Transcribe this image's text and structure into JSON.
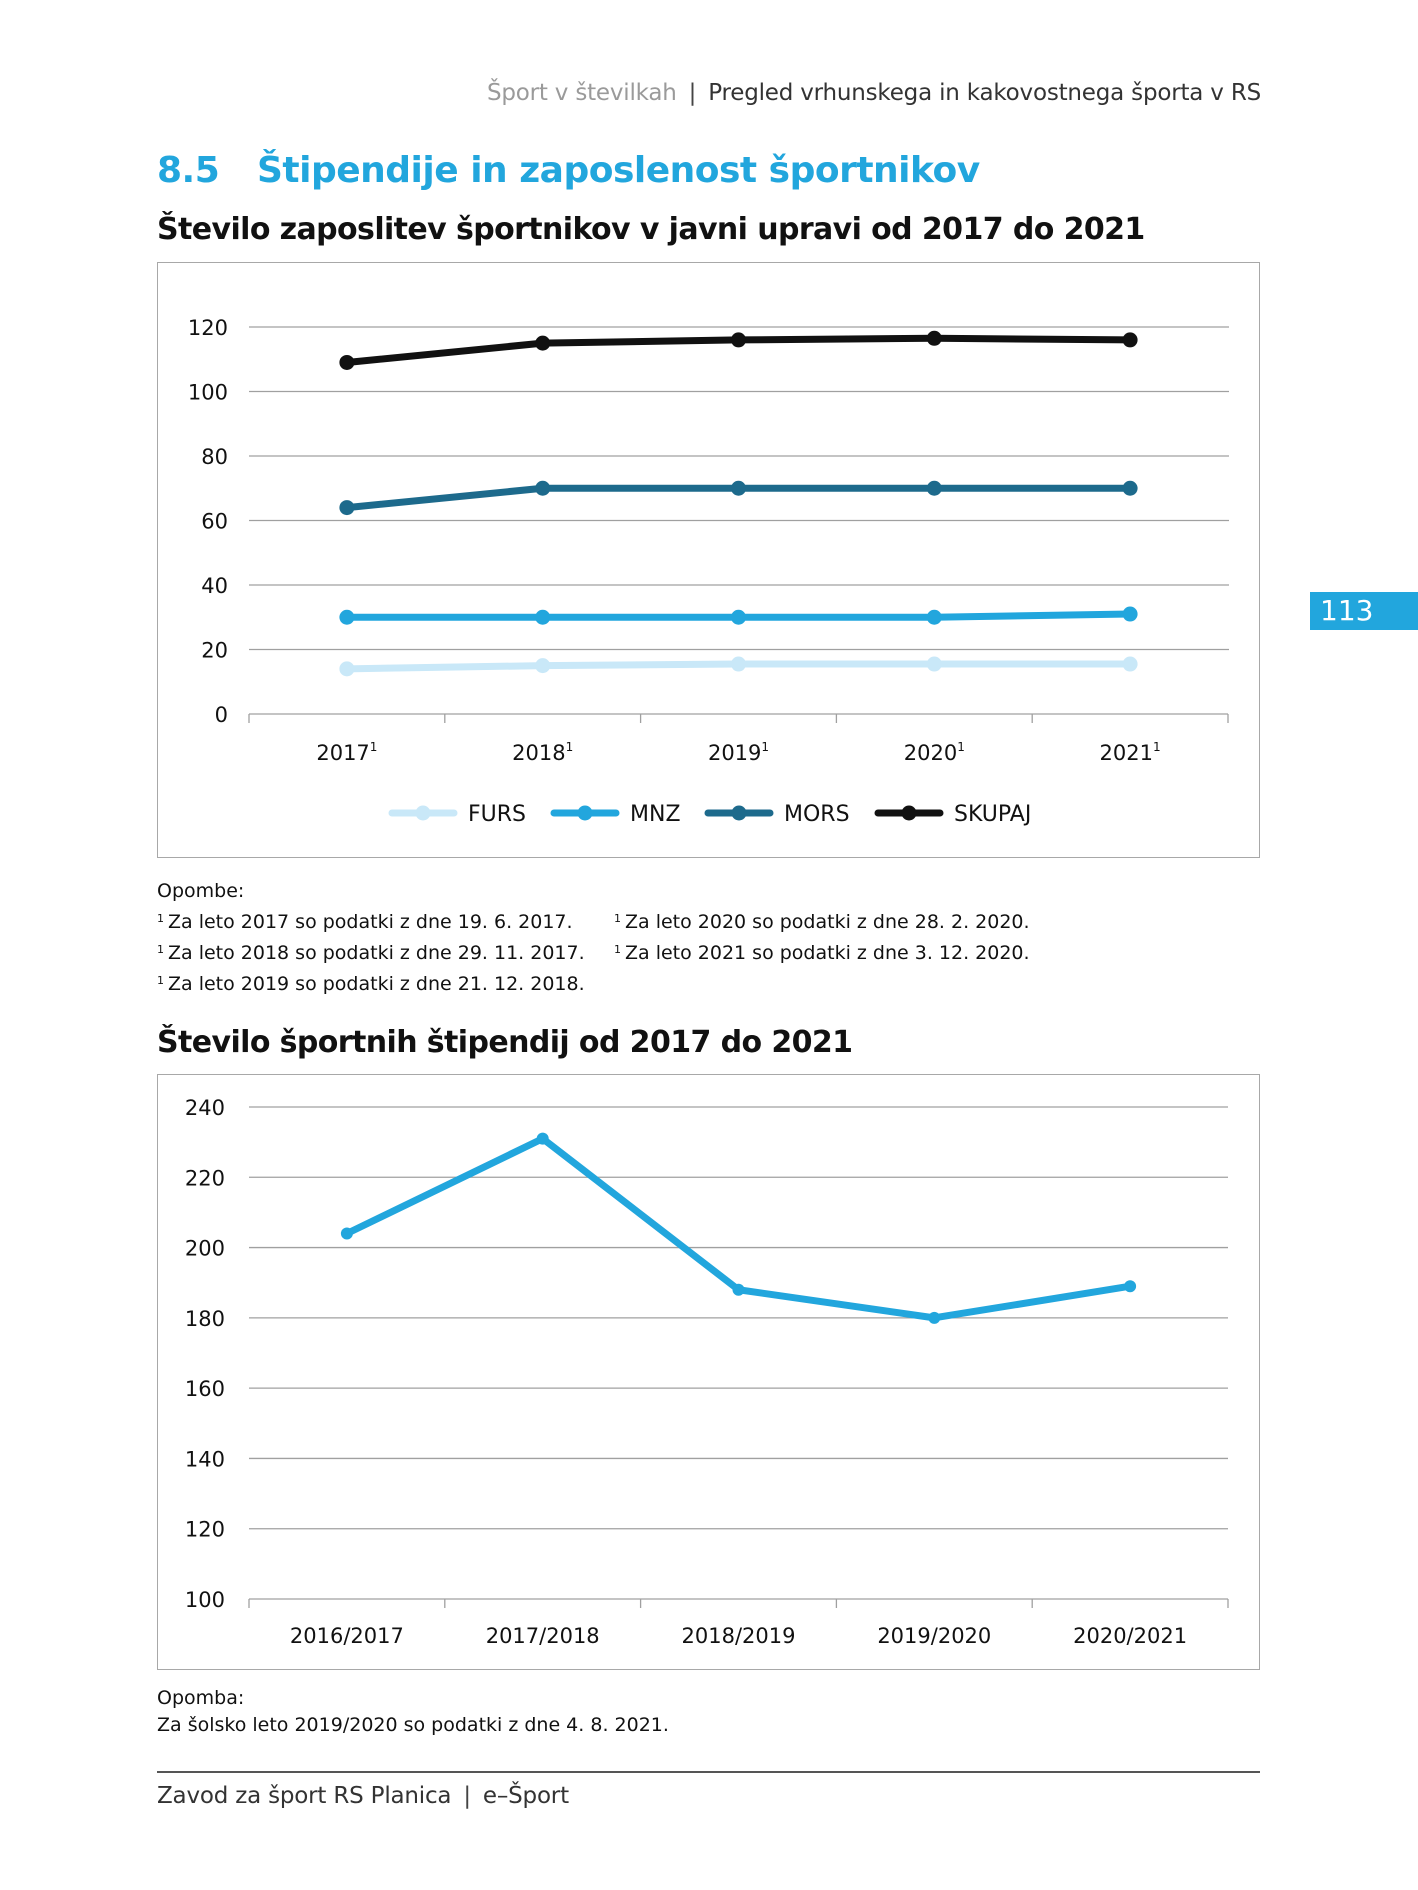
{
  "header": {
    "left": "Šport v številkah",
    "separator": "|",
    "right": "Pregled vrhunskega in kakovostnega športa v RS"
  },
  "page_number": "113",
  "section": {
    "number": "8.5",
    "title": "Štipendije in zaposlenost športnikov"
  },
  "chart_data": [
    {
      "type": "line",
      "title": "Število zaposlitev športnikov v javni upravi od 2017 do 2021",
      "categories": [
        "2017",
        "2018",
        "2019",
        "2020",
        "2021"
      ],
      "category_superscript": "1",
      "ylim": [
        0,
        120
      ],
      "yticks": [
        0,
        20,
        40,
        60,
        80,
        100,
        120
      ],
      "grid": true,
      "legend_position": "bottom",
      "series": [
        {
          "name": "FURS",
          "color": "#c9e8f8",
          "values": [
            14,
            15,
            15.5,
            15.5,
            15.5
          ]
        },
        {
          "name": "MNZ",
          "color": "#22a6dd",
          "values": [
            30,
            30,
            30,
            30,
            31
          ]
        },
        {
          "name": "MORS",
          "color": "#1d6a8c",
          "values": [
            64,
            70,
            70,
            70,
            70
          ]
        },
        {
          "name": "SKUPAJ",
          "color": "#111111",
          "values": [
            109,
            115,
            116,
            116.5,
            116
          ]
        }
      ]
    },
    {
      "type": "line",
      "title": "Število športnih štipendij od 2017 do 2021",
      "categories": [
        "2016/2017",
        "2017/2018",
        "2018/2019",
        "2019/2020",
        "2020/2021"
      ],
      "ylim": [
        100,
        240
      ],
      "yticks": [
        100,
        120,
        140,
        160,
        180,
        200,
        220,
        240
      ],
      "grid": true,
      "series": [
        {
          "color": "#22a6dd",
          "values": [
            204,
            231,
            188,
            180,
            189
          ]
        }
      ]
    }
  ],
  "notes1": {
    "heading": "Opombe:",
    "marker": "1",
    "left": [
      "Za leto 2017 so podatki z dne 19. 6. 2017.",
      "Za leto 2018 so podatki z dne 29. 11. 2017.",
      "Za leto 2019 so podatki z dne 21. 12. 2018."
    ],
    "right": [
      "Za leto 2020 so podatki z dne 28. 2. 2020.",
      "Za leto 2021 so podatki z dne 3. 12. 2020."
    ]
  },
  "notes2": {
    "heading": "Opomba:",
    "text": "Za šolsko leto 2019/2020 so podatki z dne 4. 8. 2021."
  },
  "footer": {
    "left": "Zavod za šport RS Planica",
    "separator": "|",
    "right": "e–Šport"
  }
}
